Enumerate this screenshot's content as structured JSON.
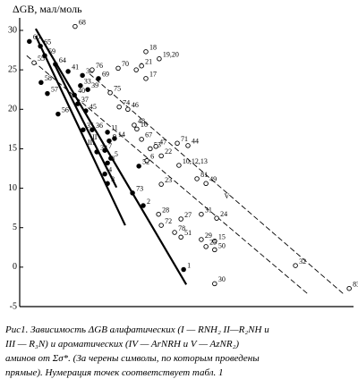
{
  "chart_data": {
    "type": "scatter",
    "y_label": "ΔGB, мал/моль",
    "ylim": [
      -5,
      30
    ],
    "yticks": [
      30,
      25,
      20,
      15,
      10,
      5,
      0,
      -5
    ],
    "xlim": [
      0,
      100
    ],
    "point_labels": [
      "60",
      "68",
      "65",
      "59",
      "55",
      "64",
      "58",
      "57",
      "41",
      "38",
      "76",
      "70",
      "18",
      "19,20",
      "8",
      "21",
      "17",
      "69",
      "33",
      "39",
      "75",
      "40",
      "37",
      "45",
      "56",
      "74",
      "46",
      "36",
      "35",
      "48",
      "16",
      "11",
      "9",
      "14",
      "67",
      "53",
      "47",
      "71",
      "44",
      "34",
      "7",
      "5",
      "8",
      "52",
      "6",
      "22",
      "10,12,13",
      "4",
      "3",
      "81",
      "23",
      "49",
      "73",
      "2",
      "28",
      "72",
      "27",
      "31",
      "24",
      "78",
      "51",
      "29",
      "15",
      "25",
      "50",
      "1",
      "30",
      "32",
      "83"
    ],
    "x": [
      2.9,
      16.6,
      6.2,
      7.5,
      4.3,
      10.7,
      6.4,
      8.3,
      14.5,
      18.8,
      21.7,
      29.5,
      37.8,
      41.8,
      34.9,
      36.5,
      37.8,
      23.6,
      18.2,
      20.4,
      27.1,
      16.4,
      17.4,
      19.8,
      11.5,
      29.8,
      32.4,
      21.7,
      19.0,
      34.3,
      35.1,
      26.3,
      26.8,
      28.4,
      36.5,
      39.1,
      40.8,
      47.2,
      50.4,
      23.1,
      25.5,
      27.3,
      26.3,
      35.7,
      38.1,
      42.4,
      47.7,
      25.5,
      26.3,
      53.1,
      42.4,
      55.8,
      33.8,
      37.0,
      41.6,
      42.4,
      48.3,
      54.4,
      59.0,
      46.4,
      48.3,
      54.4,
      58.4,
      55.8,
      58.4,
      49.1,
      58.4,
      82.6,
      98.7
    ],
    "values": [
      28.6,
      30.5,
      28.0,
      26.8,
      25.9,
      25.7,
      23.4,
      22.0,
      24.8,
      24.3,
      25.0,
      25.2,
      27.3,
      26.4,
      25.0,
      25.5,
      23.9,
      23.9,
      23.0,
      22.5,
      22.1,
      21.8,
      20.7,
      19.8,
      19.4,
      20.3,
      20.0,
      17.4,
      17.4,
      18.0,
      17.5,
      17.1,
      16.0,
      16.3,
      16.2,
      15.0,
      15.3,
      15.7,
      15.4,
      14.6,
      14.8,
      13.8,
      13.2,
      12.8,
      13.5,
      14.1,
      12.9,
      11.8,
      10.6,
      11.2,
      10.5,
      10.6,
      9.4,
      7.8,
      6.7,
      5.3,
      6.1,
      6.7,
      6.2,
      4.4,
      3.8,
      3.5,
      3.3,
      2.6,
      2.2,
      -0.3,
      -2.1,
      0.2,
      -2.7
    ],
    "filled": [
      true,
      false,
      true,
      true,
      false,
      true,
      true,
      true,
      true,
      true,
      false,
      false,
      false,
      false,
      false,
      false,
      false,
      true,
      true,
      true,
      false,
      true,
      true,
      true,
      true,
      false,
      false,
      true,
      true,
      false,
      false,
      true,
      true,
      true,
      false,
      false,
      false,
      false,
      false,
      true,
      true,
      true,
      true,
      true,
      false,
      false,
      false,
      true,
      true,
      false,
      false,
      false,
      true,
      true,
      false,
      false,
      false,
      false,
      false,
      false,
      false,
      false,
      false,
      false,
      false,
      true,
      false,
      false,
      false
    ],
    "lines": [
      {
        "x": [
          4.8,
          49.9
        ],
        "y": [
          30.2,
          -2.2
        ],
        "style": "solid"
      },
      {
        "label": "III",
        "x": [
          4.8,
          31.6
        ],
        "y": [
          29.3,
          5.3
        ],
        "style": "solid"
      },
      {
        "label": "II",
        "x": [
          10.2,
          29.0
        ],
        "y": [
          25.9,
          10.1
        ],
        "style": "solid"
      },
      {
        "x": [
          2.1,
          86.6
        ],
        "y": [
          26.8,
          -3.5
        ],
        "style": "dashed"
      },
      {
        "label": "V",
        "x": [
          20.9,
          97.3
        ],
        "y": [
          24.5,
          -3.5
        ],
        "style": "dashed"
      }
    ]
  },
  "caption": [
    "Рис1. Зависимость ΔGB алифатических  (I — RNH₂ II—R₂NH и",
    "III    — R₃N) и ароматических (IV — ArNRH и V — AzNR₂)",
    "аминов от Σσ*. (За черены символы, по которым проведены",
    "прямые). Нумерация точек соответствует табл. 1"
  ]
}
